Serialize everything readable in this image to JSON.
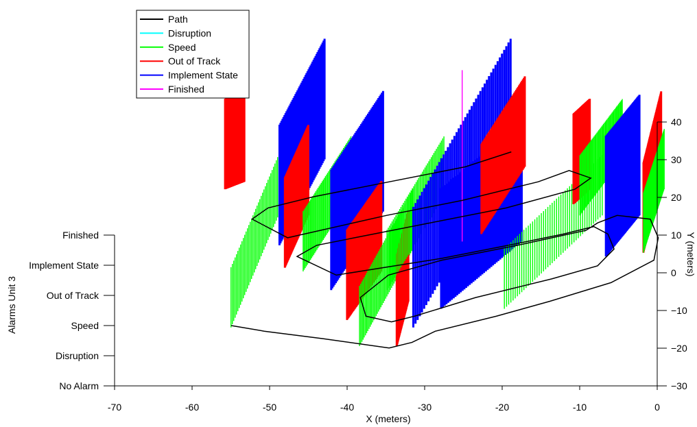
{
  "chart_data": {
    "type": "line",
    "x_axis": {
      "label": "X (meters)",
      "ticks": [
        -70,
        -60,
        -50,
        -40,
        -30,
        -20,
        -10,
        0
      ],
      "range": [
        -70,
        0
      ]
    },
    "y_axis": {
      "label": "Y (meters)",
      "ticks": [
        -30,
        -20,
        -10,
        0,
        10,
        20,
        30,
        40
      ],
      "range": [
        -30,
        40
      ]
    },
    "z_axis": {
      "label": "Alarms Unit 3",
      "ticks": [
        "No Alarm",
        "Disruption",
        "Speed",
        "Out of Track",
        "Implement State",
        "Finished"
      ],
      "range": [
        0,
        5
      ]
    },
    "legend_position": "top-left",
    "series": [
      {
        "name": "Path",
        "color": "#000000"
      },
      {
        "name": "Disruption",
        "color": "#00ffff"
      },
      {
        "name": "Speed",
        "color": "#00ff00"
      },
      {
        "name": "Out of Track",
        "color": "#ff0000"
      },
      {
        "name": "Implement State",
        "color": "#0000ff"
      },
      {
        "name": "Finished",
        "color": "#ff00ff"
      }
    ],
    "path_points": [
      [
        -57.5,
        -14.5
      ],
      [
        -53,
        -16
      ],
      [
        -45,
        -18
      ],
      [
        -36,
        -20.5
      ],
      [
        -33,
        -19
      ],
      [
        -30,
        -16
      ],
      [
        -22,
        -12
      ],
      [
        -15,
        -8
      ],
      [
        -7,
        -3
      ],
      [
        -1.5,
        3
      ],
      [
        -1.2,
        9
      ],
      [
        -2.5,
        14
      ],
      [
        -7,
        15
      ],
      [
        -9.5,
        13
      ],
      [
        -11,
        11
      ],
      [
        -20,
        7
      ],
      [
        -30,
        3
      ],
      [
        -37,
        -1
      ],
      [
        -40.5,
        -7
      ],
      [
        -39.5,
        -12
      ],
      [
        -36,
        -13.5
      ],
      [
        -33,
        -12
      ],
      [
        -25,
        -7
      ],
      [
        -15,
        -2
      ],
      [
        -9,
        1.5
      ],
      [
        -7,
        6
      ],
      [
        -8,
        10
      ],
      [
        -10,
        12
      ],
      [
        -14,
        10
      ],
      [
        -20,
        7.5
      ],
      [
        -30,
        3.5
      ],
      [
        -44,
        -1
      ],
      [
        -49.5,
        4
      ],
      [
        -47,
        7
      ],
      [
        -42,
        9
      ],
      [
        -32,
        13
      ],
      [
        -22,
        17
      ],
      [
        -13,
        22
      ],
      [
        -11,
        25
      ],
      [
        -14,
        27
      ],
      [
        -18,
        24
      ],
      [
        -28,
        19
      ],
      [
        -38,
        15
      ],
      [
        -51,
        9
      ],
      [
        -56,
        14
      ],
      [
        -54,
        17
      ],
      [
        -48,
        20
      ],
      [
        -38,
        24
      ],
      [
        -28,
        28
      ],
      [
        -22,
        32
      ]
    ],
    "alarm_segments": [
      {
        "alarm": "Out of Track",
        "x": [
          -60,
          -57.5
        ],
        "y": [
          22,
          24
        ]
      },
      {
        "alarm": "Speed",
        "x": [
          -57.5,
          -51
        ],
        "y": [
          -15,
          24
        ]
      },
      {
        "alarm": "Implement State",
        "x": [
          -52,
          -47
        ],
        "y": [
          7,
          30
        ]
      },
      {
        "alarm": "Out of Track",
        "x": [
          -51,
          -48.5
        ],
        "y": [
          1,
          15
        ]
      },
      {
        "alarm": "Speed",
        "x": [
          -48.5,
          -43
        ],
        "y": [
          0,
          20
        ]
      },
      {
        "alarm": "Implement State",
        "x": [
          -44.5,
          -38.5
        ],
        "y": [
          -5,
          16
        ]
      },
      {
        "alarm": "Out of Track",
        "x": [
          -42,
          -38
        ],
        "y": [
          -13,
          0
        ]
      },
      {
        "alarm": "Speed",
        "x": [
          -40,
          -34
        ],
        "y": [
          -20,
          6
        ]
      },
      {
        "alarm": "Out of Track",
        "x": [
          -35,
          -34
        ],
        "y": [
          -20,
          -8
        ]
      },
      {
        "alarm": "Speed",
        "x": [
          -37,
          -30.5
        ],
        "y": [
          -5,
          20
        ]
      },
      {
        "alarm": "Implement State",
        "x": [
          -33,
          -22
        ],
        "y": [
          -15,
          30
        ]
      },
      {
        "alarm": "Implement State",
        "x": [
          -29.5,
          -19.5
        ],
        "y": [
          -10,
          8
        ]
      },
      {
        "alarm": "Speed",
        "x": [
          -21,
          -9
        ],
        "y": [
          -10,
          15
        ]
      },
      {
        "alarm": "Out of Track",
        "x": [
          -25,
          -20
        ],
        "y": [
          10,
          28
        ]
      },
      {
        "alarm": "Out of Track",
        "x": [
          -13,
          -11
        ],
        "y": [
          18,
          22
        ]
      },
      {
        "alarm": "Speed",
        "x": [
          -12,
          -7
        ],
        "y": [
          15,
          30
        ]
      },
      {
        "alarm": "Implement State",
        "x": [
          -8,
          -4
        ],
        "y": [
          4,
          15
        ]
      },
      {
        "alarm": "Out of Track",
        "x": [
          -3,
          -1.5
        ],
        "y": [
          5,
          24
        ]
      },
      {
        "alarm": "Speed",
        "x": [
          -3,
          -1
        ],
        "y": [
          5,
          22
        ]
      },
      {
        "alarm": "Finished",
        "x": [
          -27.5,
          -27.5
        ],
        "y": [
          8,
          8
        ]
      }
    ]
  }
}
